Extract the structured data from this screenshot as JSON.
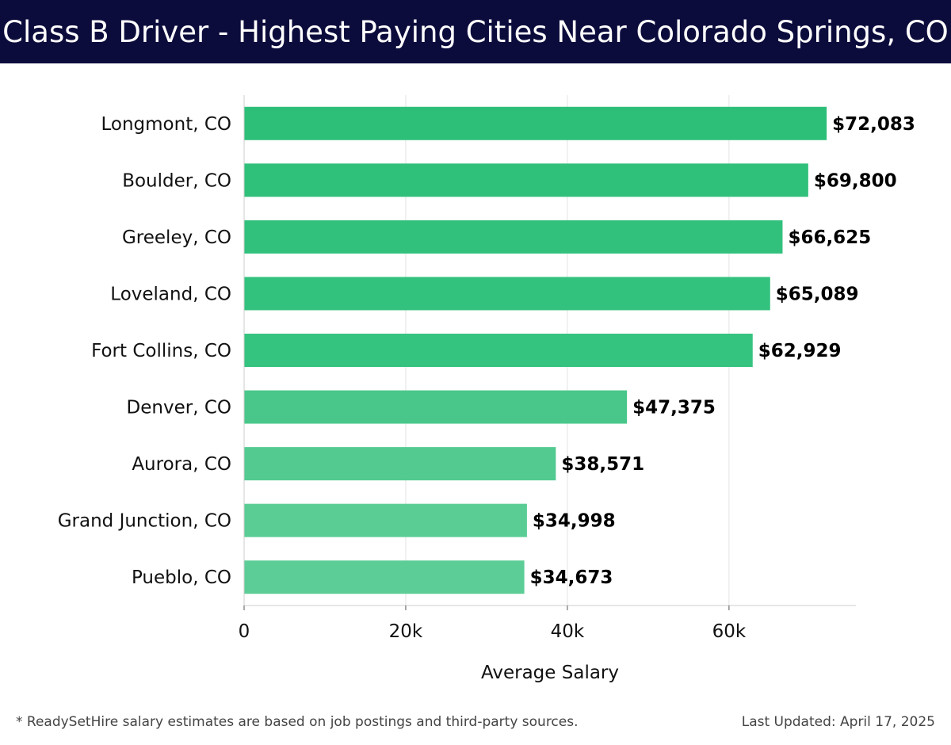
{
  "header": {
    "title": "Class B Driver - Highest Paying Cities Near Colorado Springs, CO"
  },
  "chart_data": {
    "type": "bar",
    "orientation": "horizontal",
    "title": "Class B Driver - Highest Paying Cities Near Colorado Springs, CO",
    "xlabel": "Average Salary",
    "ylabel": "",
    "categories": [
      "Longmont, CO",
      "Boulder, CO",
      "Greeley, CO",
      "Loveland, CO",
      "Fort Collins, CO",
      "Denver, CO",
      "Aurora, CO",
      "Grand Junction, CO",
      "Pueblo, CO"
    ],
    "values": [
      72083,
      69800,
      66625,
      65089,
      62929,
      47375,
      38571,
      34998,
      34673
    ],
    "value_labels": [
      "$72,083",
      "$69,800",
      "$66,625",
      "$65,089",
      "$62,929",
      "$47,375",
      "$38,571",
      "$34,998",
      "$34,673"
    ],
    "xlim": [
      0,
      75700
    ],
    "xticks": [
      0,
      20000,
      40000,
      60000
    ],
    "xtick_labels": [
      "0",
      "20k",
      "40k",
      "60k"
    ],
    "grid": "vertical",
    "legend": "none",
    "bar_colors": [
      "#2dbf78",
      "#2fc07a",
      "#31c17c",
      "#33c27e",
      "#35c380",
      "#49c78a",
      "#52ca90",
      "#5acd95",
      "#5ccd96"
    ]
  },
  "footer": {
    "note": "* ReadySetHire salary estimates are based on job postings and third-party sources.",
    "updated": "Last Updated: April 17, 2025"
  }
}
